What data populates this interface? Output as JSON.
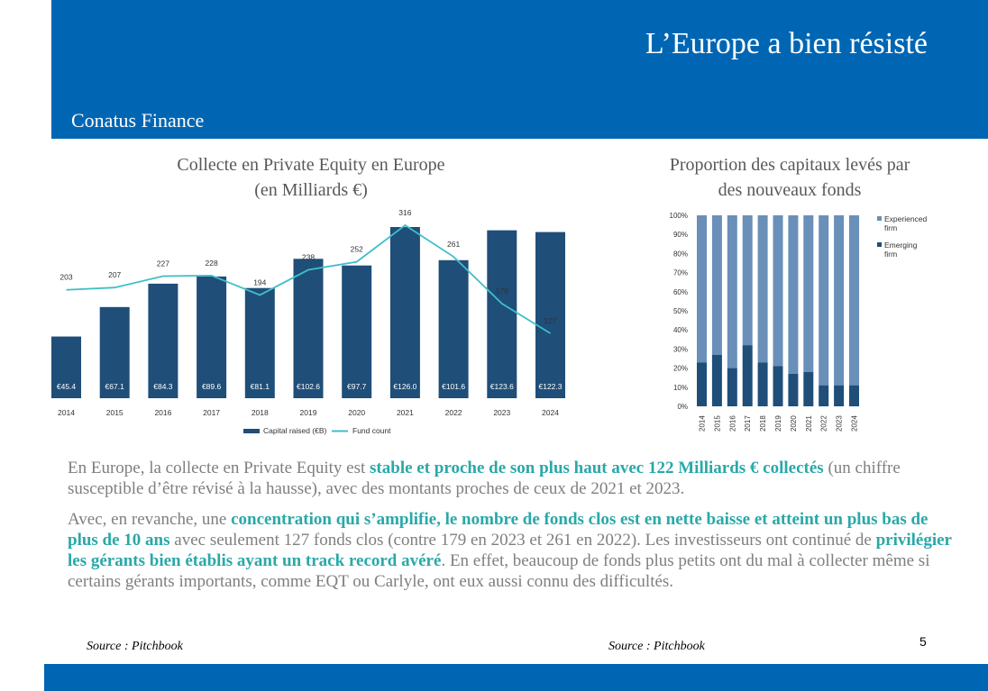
{
  "header": {
    "title": "L’Europe a bien résisté",
    "brand": "Conatus Finance"
  },
  "colors": {
    "header_blue": "#0066b3",
    "bar_dark": "#1f4e79",
    "line_teal": "#3fbfc8",
    "experienced": "#6a8fb8",
    "emerging": "#1f4e79",
    "highlight": "#2aa8a8"
  },
  "chart_data": [
    {
      "type": "bar",
      "title_line1": "Collecte en Private Equity en Europe",
      "title_line2": "(en Milliards €)",
      "categories": [
        "2014",
        "2015",
        "2016",
        "2017",
        "2018",
        "2019",
        "2020",
        "2021",
        "2022",
        "2023",
        "2024"
      ],
      "series": [
        {
          "name": "Capital raised (€B)",
          "type": "bar",
          "values": [
            45.4,
            67.1,
            84.3,
            89.6,
            81.1,
            102.6,
            97.7,
            126.0,
            101.6,
            123.6,
            122.3
          ],
          "labels": [
            "€45.4",
            "€67.1",
            "€84.3",
            "€89.6",
            "€81.1",
            "€102.6",
            "€97.7",
            "€126.0",
            "€101.6",
            "€123.6",
            "€122.3"
          ]
        },
        {
          "name": "Fund count",
          "type": "line",
          "values": [
            203,
            207,
            227,
            228,
            194,
            238,
            252,
            316,
            261,
            179,
            127
          ]
        }
      ]
    },
    {
      "type": "bar",
      "stacked": true,
      "title_line1": "Proportion des capitaux levés par",
      "title_line2": "des nouveaux fonds",
      "categories": [
        "2014",
        "2015",
        "2016",
        "2017",
        "2018",
        "2019",
        "2020",
        "2021",
        "2022",
        "2023",
        "2024"
      ],
      "y_ticks": [
        "0%",
        "10%",
        "20%",
        "30%",
        "40%",
        "50%",
        "60%",
        "70%",
        "80%",
        "90%",
        "100%"
      ],
      "ylim": [
        0,
        100
      ],
      "legend_position": "top-right",
      "series": [
        {
          "name": "Experienced firm",
          "values": [
            77,
            73,
            80,
            68,
            77,
            79,
            83,
            82,
            89,
            89,
            89
          ]
        },
        {
          "name": "Emerging firm",
          "values": [
            23,
            27,
            20,
            32,
            23,
            21,
            17,
            18,
            11,
            11,
            11
          ]
        }
      ]
    }
  ],
  "body": {
    "p1": {
      "t1": "En Europe, la collecte en Private Equity est ",
      "h1": "stable et proche de son plus haut avec 122 Milliards € collectés",
      "t2": " (un chiffre susceptible d’être révisé à la hausse), avec des montants proches de ceux de 2021 et 2023."
    },
    "p2": {
      "t1": "Avec, en revanche, une ",
      "h1": "concentration qui s’amplifie, le nombre de fonds clos est en nette baisse et atteint un plus bas de plus de 10 ans",
      "t2": " avec seulement 127 fonds clos (contre 179 en 2023 et 261 en 2022). Les investisseurs ont continué de ",
      "h2": "privilégier les gérants bien établis ayant un track record avéré",
      "t3": ". En effet, beaucoup de fonds plus petits ont du mal à collecter même si certains gérants importants, comme EQT ou Carlyle, ont eux aussi connu des difficultés."
    }
  },
  "sources": {
    "left": "Source : Pitchbook",
    "right": "Source : Pitchbook"
  },
  "page_number": "5"
}
